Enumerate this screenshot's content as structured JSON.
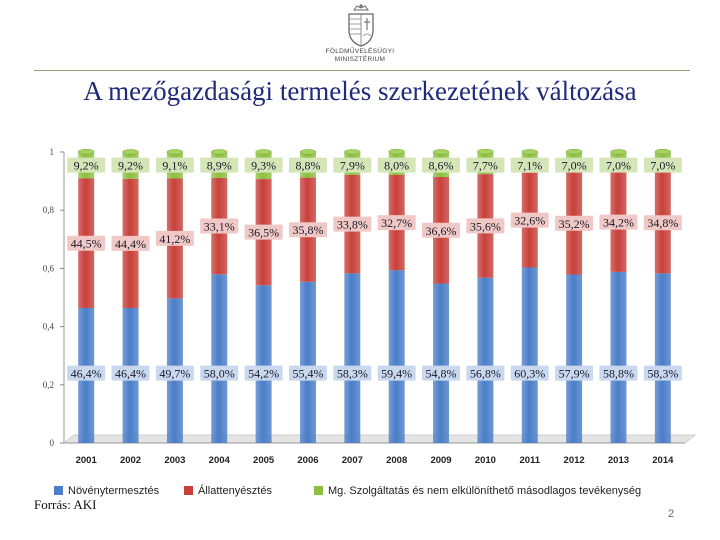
{
  "header": {
    "ministry_line1": "FÖLDMŰVELÉSÜGYI",
    "ministry_line2": "MINISZTÉRIUM",
    "title": "A mezőgazdasági termelés szerkezetének változása"
  },
  "footer": {
    "source": "Forrás: AKI",
    "page_number": "2"
  },
  "colors": {
    "plant": "#4a7ec8",
    "animal": "#c8403a",
    "service": "#8cbf3f",
    "title": "#1f2a7a"
  },
  "chart_data": {
    "type": "bar",
    "stacked": true,
    "categories": [
      "2001",
      "2002",
      "2003",
      "2004",
      "2005",
      "2006",
      "2007",
      "2008",
      "2009",
      "2010",
      "2011",
      "2012",
      "2013",
      "2014"
    ],
    "ylim": [
      0,
      1
    ],
    "yticks": [
      "0",
      "0,2",
      "0,4",
      "0,6",
      "0,8",
      "1"
    ],
    "legend_position": "bottom",
    "series": [
      {
        "name": "Növénytermesztés",
        "values": [
          0.464,
          0.464,
          0.497,
          0.58,
          0.542,
          0.554,
          0.583,
          0.594,
          0.548,
          0.568,
          0.603,
          0.579,
          0.588,
          0.583
        ],
        "labels": [
          "46,4%",
          "46,4%",
          "49,7%",
          "58,0%",
          "54,2%",
          "55,4%",
          "58,3%",
          "59,4%",
          "54,8%",
          "56,8%",
          "60,3%",
          "57,9%",
          "58,8%",
          "58,3%"
        ]
      },
      {
        "name": "Állattenyésztés",
        "values": [
          0.445,
          0.444,
          0.412,
          0.331,
          0.365,
          0.358,
          0.338,
          0.327,
          0.366,
          0.356,
          0.326,
          0.352,
          0.342,
          0.348
        ],
        "labels": [
          "44,5%",
          "44,4%",
          "41,2%",
          "33,1%",
          "36,5%",
          "35,8%",
          "33,8%",
          "32,7%",
          "36,6%",
          "35,6%",
          "32,6%",
          "35,2%",
          "34,2%",
          "34,8%"
        ]
      },
      {
        "name": "Mg. Szolgáltatás és nem elkülöníthető másodlagos tevékenység",
        "values": [
          0.092,
          0.092,
          0.091,
          0.089,
          0.093,
          0.088,
          0.079,
          0.08,
          0.086,
          0.077,
          0.071,
          0.07,
          0.07,
          0.07
        ],
        "labels": [
          "9,2%",
          "9,2%",
          "9,1%",
          "8,9%",
          "9,3%",
          "8,8%",
          "7,9%",
          "8,0%",
          "8,6%",
          "7,7%",
          "7,1%",
          "7,0%",
          "7,0%",
          "7,0%"
        ]
      }
    ]
  }
}
